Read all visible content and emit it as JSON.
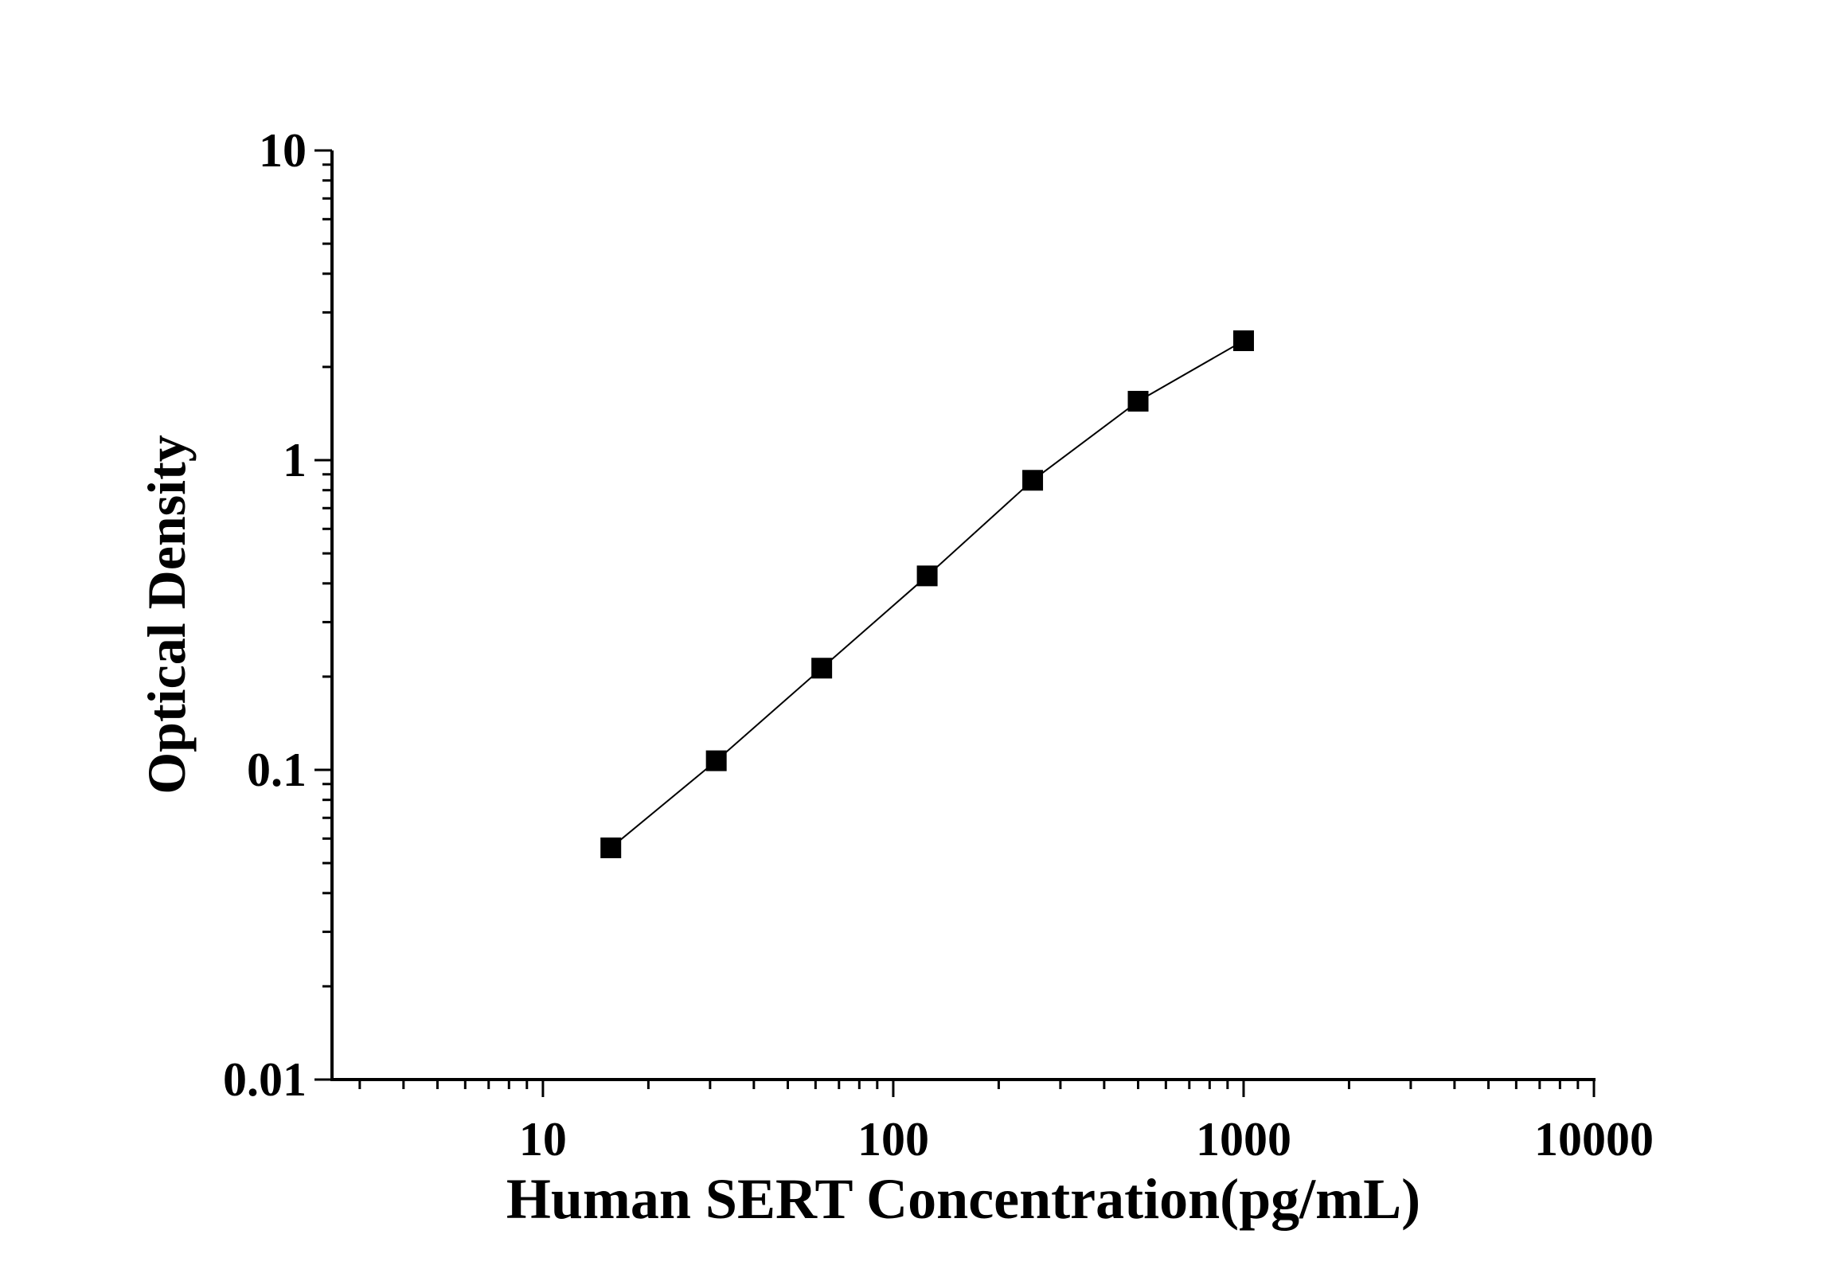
{
  "chart_data": {
    "type": "line",
    "title": "",
    "xlabel": "Human SERT Concentration(pg/mL)",
    "ylabel": "Optical Density",
    "xscale": "log",
    "yscale": "log",
    "xlim": [
      2.5,
      10000
    ],
    "ylim": [
      0.01,
      10
    ],
    "xticks": [
      10,
      100,
      1000,
      10000
    ],
    "xtick_labels": [
      "10",
      "100",
      "1000",
      "10000"
    ],
    "yticks": [
      0.01,
      0.1,
      1,
      10
    ],
    "ytick_labels": [
      "0.01",
      "0.1",
      "1",
      "10"
    ],
    "grid": false,
    "marker": "square",
    "color": "#000000",
    "series": [
      {
        "x": [
          15.625,
          31.25,
          62.5,
          125,
          250,
          500,
          1000
        ],
        "y": [
          0.056,
          0.107,
          0.213,
          0.423,
          0.861,
          1.55,
          2.43
        ]
      }
    ]
  }
}
